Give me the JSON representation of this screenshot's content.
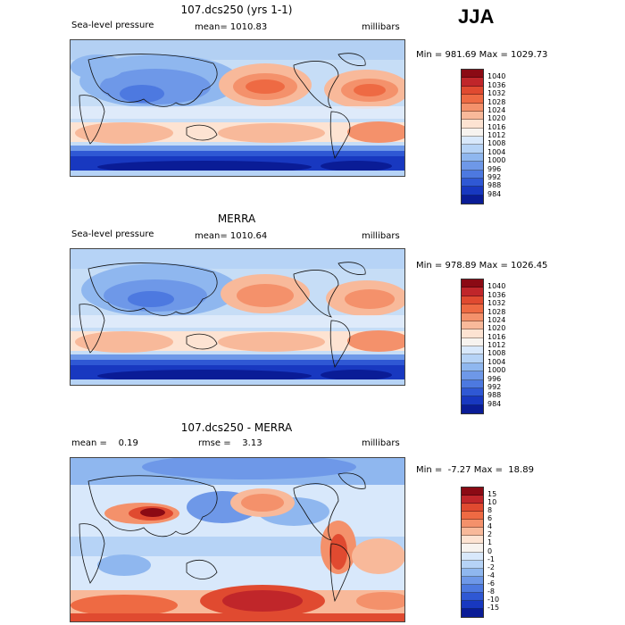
{
  "season": "JJA",
  "panels": [
    {
      "title": "107.dcs250 (yrs 1-1)",
      "left_text": "Sea-level pressure",
      "mid_text": "mean= 1010.83",
      "right_text": "millibars",
      "minmax": "Min = 981.69 Max = 1029.73",
      "colorbar": {
        "colors": [
          "#8b0a14",
          "#c0262a",
          "#e04a30",
          "#ee6a43",
          "#f4916b",
          "#f8b99a",
          "#fde3d2",
          "#f7f3ef",
          "#d8e8fb",
          "#b6d3f6",
          "#8fb7ef",
          "#6e98e8",
          "#4d79e0",
          "#2f58d4",
          "#1838c0",
          "#0a1c96"
        ],
        "labels": [
          "1040",
          "1036",
          "1032",
          "1028",
          "1024",
          "1020",
          "1016",
          "1012",
          "1008",
          "1004",
          "1000",
          "996",
          "992",
          "988",
          "984"
        ]
      }
    },
    {
      "title": "MERRA",
      "left_text": "Sea-level pressure",
      "mid_text": "mean= 1010.64",
      "right_text": "millibars",
      "minmax": "Min = 978.89 Max = 1026.45",
      "colorbar": {
        "colors": [
          "#8b0a14",
          "#c0262a",
          "#e04a30",
          "#ee6a43",
          "#f4916b",
          "#f8b99a",
          "#fde3d2",
          "#f7f3ef",
          "#d8e8fb",
          "#b6d3f6",
          "#8fb7ef",
          "#6e98e8",
          "#4d79e0",
          "#2f58d4",
          "#1838c0",
          "#0a1c96"
        ],
        "labels": [
          "1040",
          "1036",
          "1032",
          "1028",
          "1024",
          "1020",
          "1016",
          "1012",
          "1008",
          "1004",
          "1000",
          "996",
          "992",
          "988",
          "984"
        ]
      }
    },
    {
      "title": "107.dcs250 - MERRA",
      "left_text": "mean =    0.19",
      "mid_text": "rmse =    3.13",
      "right_text": "millibars",
      "minmax": "Min =  -7.27 Max =  18.89",
      "colorbar": {
        "colors": [
          "#8b0a14",
          "#c0262a",
          "#e04a30",
          "#ee6a43",
          "#f4916b",
          "#f8b99a",
          "#fde3d2",
          "#f7f3ef",
          "#d8e8fb",
          "#b6d3f6",
          "#8fb7ef",
          "#6e98e8",
          "#4d79e0",
          "#2f58d4",
          "#1838c0",
          "#0a1c96"
        ],
        "labels": [
          "15",
          "10",
          "8",
          "6",
          "4",
          "2",
          "1",
          "0",
          "-1",
          "-2",
          "-4",
          "-6",
          "-8",
          "-10",
          "-15"
        ]
      }
    }
  ]
}
